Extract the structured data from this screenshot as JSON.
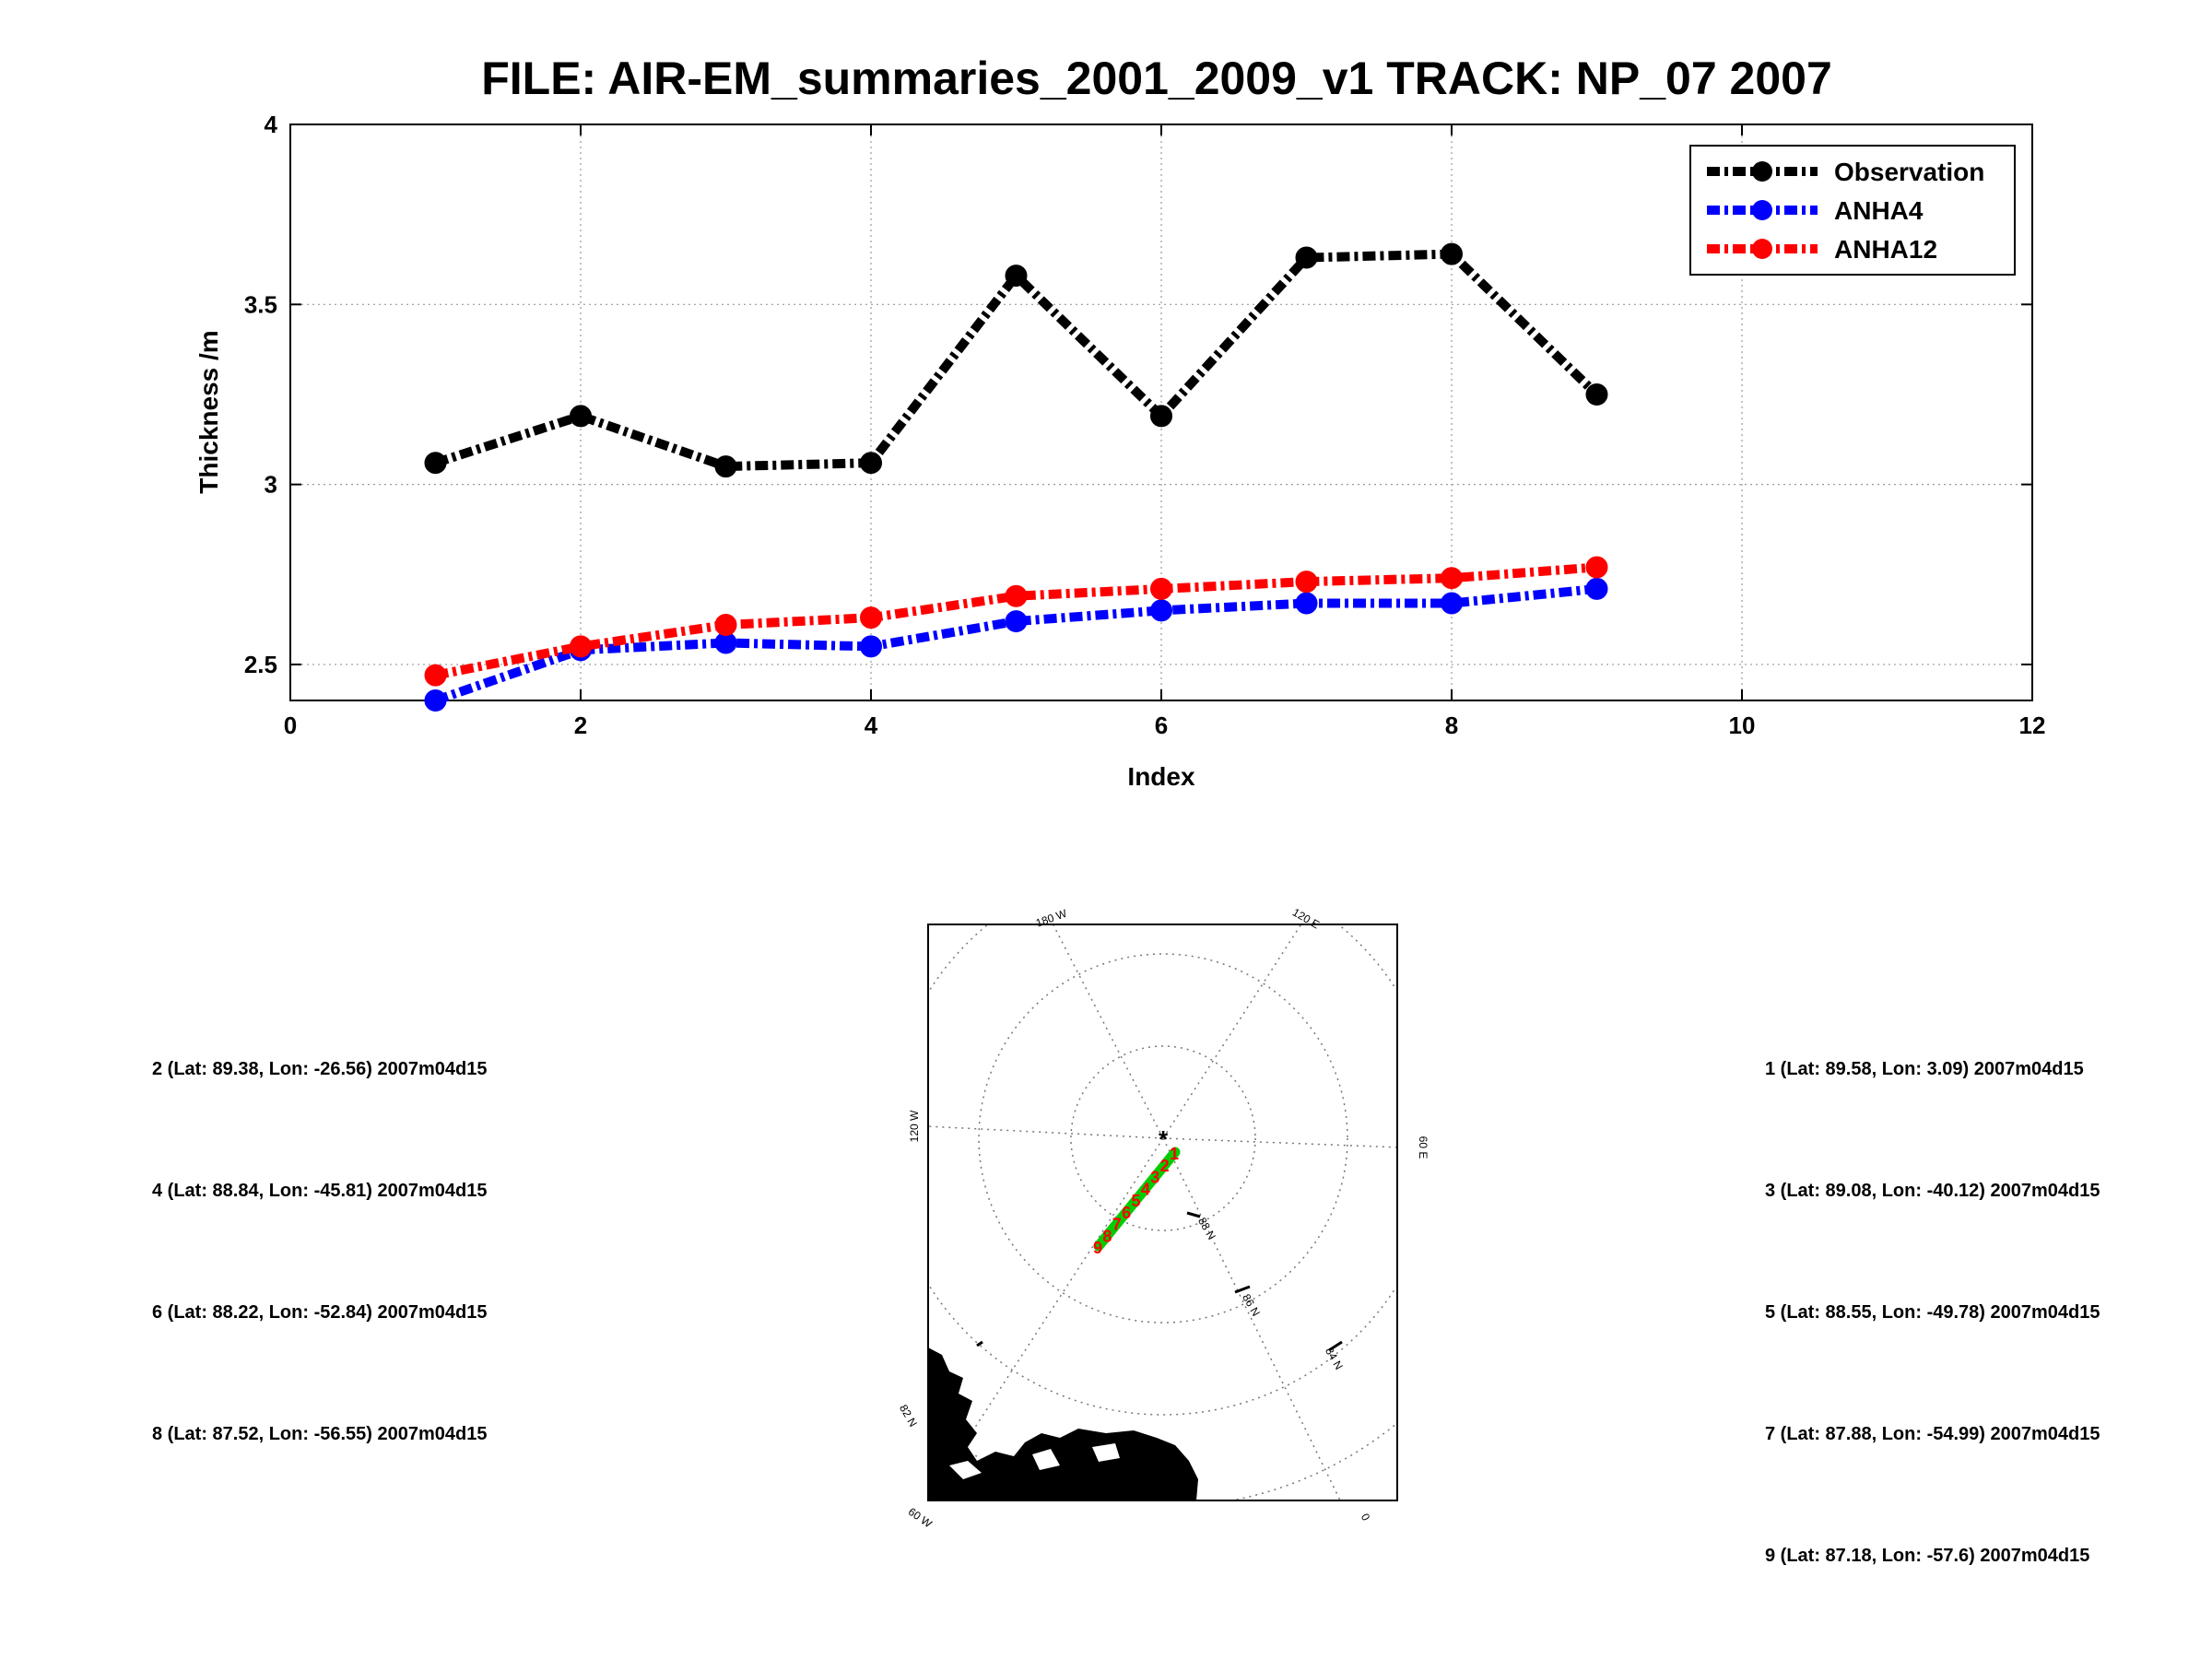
{
  "chart_data": [
    {
      "type": "line",
      "title": "FILE: AIR-EM_summaries_2001_2009_v1 TRACK: NP_07 2007",
      "xlabel": "Index",
      "ylabel": "Thickness /m",
      "xlim": [
        0,
        12
      ],
      "ylim": [
        2.4,
        4
      ],
      "x_ticks": [
        "0",
        "2",
        "4",
        "6",
        "8",
        "10",
        "12"
      ],
      "y_ticks": [
        "2.5",
        "3",
        "3.5",
        "4"
      ],
      "grid": true,
      "legend_position": "top-right",
      "x": [
        1,
        2,
        3,
        4,
        5,
        6,
        7,
        8,
        9
      ],
      "series": [
        {
          "name": "Observation",
          "color": "#000000",
          "values": [
            3.06,
            3.19,
            3.05,
            3.06,
            3.58,
            3.19,
            3.63,
            3.64,
            3.25
          ]
        },
        {
          "name": "ANHA4",
          "color": "#0000ff",
          "values": [
            2.4,
            2.54,
            2.56,
            2.55,
            2.62,
            2.65,
            2.67,
            2.67,
            2.71
          ]
        },
        {
          "name": "ANHA12",
          "color": "#ff0000",
          "values": [
            2.47,
            2.55,
            2.61,
            2.63,
            2.69,
            2.71,
            2.73,
            2.74,
            2.77
          ]
        }
      ]
    }
  ],
  "map": {
    "track_color": "#00cc00",
    "marker_color": "#ff0000",
    "track_markers": [
      "1",
      "2",
      "3",
      "4",
      "5",
      "6",
      "7",
      "8",
      "9"
    ],
    "longitude_labels": [
      "180 W",
      "120 E",
      "60 E",
      "0",
      "60 W",
      "120 W"
    ],
    "latitude_labels": [
      "88 N",
      "86 N",
      "84 N",
      "82 N"
    ]
  },
  "points": {
    "left": [
      "2 (Lat: 89.38, Lon: -26.56) 2007m04d15",
      "4 (Lat: 88.84, Lon: -45.81) 2007m04d15",
      "6 (Lat: 88.22, Lon: -52.84) 2007m04d15",
      "8 (Lat: 87.52, Lon: -56.55) 2007m04d15"
    ],
    "right": [
      "1 (Lat: 89.58, Lon: 3.09) 2007m04d15",
      "3 (Lat: 89.08, Lon: -40.12) 2007m04d15",
      "5 (Lat: 88.55, Lon: -49.78) 2007m04d15",
      "7 (Lat: 87.88, Lon: -54.99) 2007m04d15",
      "9 (Lat: 87.18, Lon: -57.6) 2007m04d15"
    ]
  }
}
